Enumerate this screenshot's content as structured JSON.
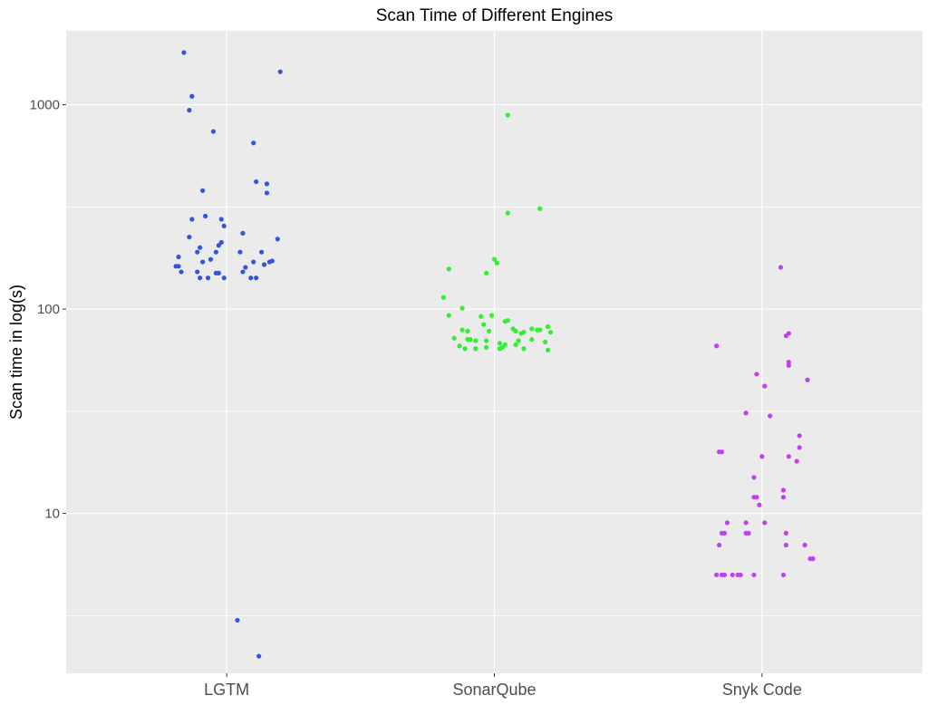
{
  "chart_data": {
    "type": "scatter",
    "title": "Scan Time of Different Engines",
    "ylabel": "Scan time in log(s)",
    "xlabel": "",
    "y_scale": "log10",
    "ylim": [
      1.65,
      2300
    ],
    "y_ticks": [
      10,
      100,
      1000
    ],
    "y_tick_labels": [
      "10",
      "100",
      "1000"
    ],
    "grid": true,
    "legend": "none",
    "categories": [
      "LGTM",
      "SonarQube",
      "Snyk Code"
    ],
    "series": [
      {
        "category": "LGTM",
        "color": "#3355dd",
        "points": [
          {
            "jitter": -0.16,
            "y": 1800
          },
          {
            "jitter": -0.14,
            "y": 940
          },
          {
            "jitter": -0.13,
            "y": 1100
          },
          {
            "jitter": -0.05,
            "y": 740
          },
          {
            "jitter": 0.2,
            "y": 1450
          },
          {
            "jitter": 0.1,
            "y": 650
          },
          {
            "jitter": -0.09,
            "y": 380
          },
          {
            "jitter": 0.11,
            "y": 420
          },
          {
            "jitter": 0.15,
            "y": 410
          },
          {
            "jitter": 0.15,
            "y": 370
          },
          {
            "jitter": -0.13,
            "y": 275
          },
          {
            "jitter": -0.08,
            "y": 285
          },
          {
            "jitter": -0.02,
            "y": 275
          },
          {
            "jitter": -0.01,
            "y": 255
          },
          {
            "jitter": 0.06,
            "y": 235
          },
          {
            "jitter": 0.19,
            "y": 220
          },
          {
            "jitter": -0.14,
            "y": 225
          },
          {
            "jitter": -0.11,
            "y": 190
          },
          {
            "jitter": -0.1,
            "y": 200
          },
          {
            "jitter": -0.04,
            "y": 190
          },
          {
            "jitter": -0.03,
            "y": 205
          },
          {
            "jitter": -0.02,
            "y": 212
          },
          {
            "jitter": 0.05,
            "y": 190
          },
          {
            "jitter": 0.13,
            "y": 190
          },
          {
            "jitter": -0.18,
            "y": 180
          },
          {
            "jitter": -0.09,
            "y": 170
          },
          {
            "jitter": -0.06,
            "y": 175
          },
          {
            "jitter": 0.1,
            "y": 170
          },
          {
            "jitter": 0.16,
            "y": 170
          },
          {
            "jitter": 0.17,
            "y": 172
          },
          {
            "jitter": -0.19,
            "y": 162
          },
          {
            "jitter": -0.18,
            "y": 162
          },
          {
            "jitter": -0.17,
            "y": 152
          },
          {
            "jitter": 0.14,
            "y": 165
          },
          {
            "jitter": 0.07,
            "y": 160
          },
          {
            "jitter": -0.11,
            "y": 152
          },
          {
            "jitter": -0.04,
            "y": 150
          },
          {
            "jitter": -0.03,
            "y": 150
          },
          {
            "jitter": 0.06,
            "y": 152
          },
          {
            "jitter": -0.1,
            "y": 142
          },
          {
            "jitter": -0.07,
            "y": 142
          },
          {
            "jitter": -0.01,
            "y": 142
          },
          {
            "jitter": 0.09,
            "y": 142
          },
          {
            "jitter": 0.11,
            "y": 142
          },
          {
            "jitter": 0.04,
            "y": 3.0
          },
          {
            "jitter": 0.12,
            "y": 2.0
          }
        ]
      },
      {
        "category": "SonarQube",
        "color": "#33ee33",
        "points": [
          {
            "jitter": 0.05,
            "y": 890
          },
          {
            "jitter": 0.17,
            "y": 310
          },
          {
            "jitter": 0.05,
            "y": 295
          },
          {
            "jitter": 0.0,
            "y": 175
          },
          {
            "jitter": 0.01,
            "y": 168
          },
          {
            "jitter": -0.17,
            "y": 157
          },
          {
            "jitter": -0.03,
            "y": 150
          },
          {
            "jitter": -0.19,
            "y": 114
          },
          {
            "jitter": -0.12,
            "y": 101
          },
          {
            "jitter": -0.17,
            "y": 93
          },
          {
            "jitter": -0.05,
            "y": 92
          },
          {
            "jitter": -0.01,
            "y": 93
          },
          {
            "jitter": 0.04,
            "y": 87
          },
          {
            "jitter": 0.05,
            "y": 88
          },
          {
            "jitter": -0.04,
            "y": 84
          },
          {
            "jitter": 0.14,
            "y": 80
          },
          {
            "jitter": 0.16,
            "y": 79
          },
          {
            "jitter": 0.17,
            "y": 79
          },
          {
            "jitter": 0.2,
            "y": 82
          },
          {
            "jitter": -0.12,
            "y": 79
          },
          {
            "jitter": -0.1,
            "y": 78
          },
          {
            "jitter": -0.02,
            "y": 78
          },
          {
            "jitter": 0.07,
            "y": 80
          },
          {
            "jitter": 0.08,
            "y": 78
          },
          {
            "jitter": 0.1,
            "y": 76
          },
          {
            "jitter": 0.11,
            "y": 77
          },
          {
            "jitter": 0.21,
            "y": 77
          },
          {
            "jitter": -0.15,
            "y": 72
          },
          {
            "jitter": -0.1,
            "y": 71
          },
          {
            "jitter": -0.09,
            "y": 71
          },
          {
            "jitter": -0.07,
            "y": 70
          },
          {
            "jitter": -0.03,
            "y": 70
          },
          {
            "jitter": 0.02,
            "y": 68
          },
          {
            "jitter": 0.04,
            "y": 67
          },
          {
            "jitter": 0.08,
            "y": 67
          },
          {
            "jitter": 0.09,
            "y": 70
          },
          {
            "jitter": 0.14,
            "y": 71
          },
          {
            "jitter": 0.19,
            "y": 69
          },
          {
            "jitter": -0.13,
            "y": 66
          },
          {
            "jitter": -0.11,
            "y": 64
          },
          {
            "jitter": -0.07,
            "y": 64
          },
          {
            "jitter": -0.03,
            "y": 65
          },
          {
            "jitter": 0.02,
            "y": 64
          },
          {
            "jitter": 0.03,
            "y": 65
          },
          {
            "jitter": 0.11,
            "y": 64
          },
          {
            "jitter": 0.2,
            "y": 63
          }
        ]
      },
      {
        "category": "Snyk Code",
        "color": "#c040ee",
        "points": [
          {
            "jitter": 0.07,
            "y": 160
          },
          {
            "jitter": 0.1,
            "y": 76
          },
          {
            "jitter": 0.09,
            "y": 74
          },
          {
            "jitter": -0.17,
            "y": 66
          },
          {
            "jitter": 0.1,
            "y": 55
          },
          {
            "jitter": 0.1,
            "y": 53
          },
          {
            "jitter": -0.02,
            "y": 48
          },
          {
            "jitter": 0.17,
            "y": 45
          },
          {
            "jitter": 0.01,
            "y": 42
          },
          {
            "jitter": -0.06,
            "y": 31
          },
          {
            "jitter": 0.03,
            "y": 30
          },
          {
            "jitter": 0.14,
            "y": 24
          },
          {
            "jitter": 0.14,
            "y": 21
          },
          {
            "jitter": -0.16,
            "y": 20
          },
          {
            "jitter": -0.15,
            "y": 20
          },
          {
            "jitter": 0.0,
            "y": 19
          },
          {
            "jitter": 0.1,
            "y": 19
          },
          {
            "jitter": 0.13,
            "y": 18
          },
          {
            "jitter": -0.03,
            "y": 15
          },
          {
            "jitter": 0.08,
            "y": 13
          },
          {
            "jitter": 0.08,
            "y": 12
          },
          {
            "jitter": -0.03,
            "y": 12
          },
          {
            "jitter": -0.02,
            "y": 12
          },
          {
            "jitter": -0.01,
            "y": 11
          },
          {
            "jitter": -0.13,
            "y": 9
          },
          {
            "jitter": -0.06,
            "y": 9
          },
          {
            "jitter": 0.01,
            "y": 9
          },
          {
            "jitter": -0.14,
            "y": 8
          },
          {
            "jitter": -0.15,
            "y": 8
          },
          {
            "jitter": -0.06,
            "y": 8
          },
          {
            "jitter": -0.05,
            "y": 8
          },
          {
            "jitter": 0.09,
            "y": 8
          },
          {
            "jitter": -0.16,
            "y": 7
          },
          {
            "jitter": 0.09,
            "y": 7
          },
          {
            "jitter": 0.16,
            "y": 7
          },
          {
            "jitter": 0.18,
            "y": 6
          },
          {
            "jitter": 0.19,
            "y": 6
          },
          {
            "jitter": 0.19,
            "y": 6
          },
          {
            "jitter": -0.17,
            "y": 5
          },
          {
            "jitter": -0.15,
            "y": 5
          },
          {
            "jitter": -0.14,
            "y": 5
          },
          {
            "jitter": -0.11,
            "y": 5
          },
          {
            "jitter": -0.09,
            "y": 5
          },
          {
            "jitter": -0.08,
            "y": 5
          },
          {
            "jitter": -0.03,
            "y": 5
          },
          {
            "jitter": 0.08,
            "y": 5
          }
        ]
      }
    ]
  }
}
